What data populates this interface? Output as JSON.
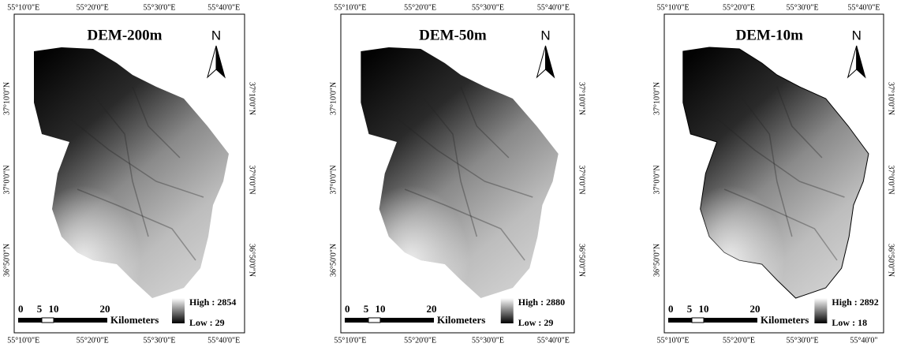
{
  "panels": [
    {
      "title": "DEM-200m",
      "north": "N",
      "top_labels": [
        "55°10'0\"E",
        "55°20'0\"E",
        "55°30'0\"E",
        "55°40'0\"E"
      ],
      "bottom_labels": [
        "55°10'0\"E",
        "55°20'0\"E",
        "55°30'0\"E",
        "55°40'0\"E"
      ],
      "left_labels": [
        "37°10'0\"N",
        "37°0'0\"N",
        "36°50'0\"N"
      ],
      "right_labels": [
        "37°10'0\"N",
        "37°0'0\"N",
        "36°50'0\"N"
      ],
      "scale_labels": [
        "0",
        "5",
        "10",
        "20"
      ],
      "scale_unit": "Kilometers",
      "legend_high": "High : 2854",
      "legend_low": "Low : 29"
    },
    {
      "title": "DEM-50m",
      "north": "N",
      "top_labels": [
        "55°10'0\"E",
        "55°20'0\"E",
        "55°30'0\"E",
        "55°40'0\"E"
      ],
      "bottom_labels": [
        "55°10'0\"E",
        "55°20'0\"E",
        "55°30'0\"E",
        "55°40'0\"E"
      ],
      "left_labels": [
        "37°10'0\"N",
        "37°0'0\"N",
        "36°50'0\"N"
      ],
      "right_labels": [
        "37°10'0\"N",
        "37°0'0\"N",
        "36°50'0\"N"
      ],
      "scale_labels": [
        "0",
        "5",
        "10",
        "20"
      ],
      "scale_unit": "Kilometers",
      "legend_high": "High : 2880",
      "legend_low": "Low : 29"
    },
    {
      "title": "DEM-10m",
      "north": "N",
      "top_labels": [
        "55°10'0\"E",
        "55°20'0\"E",
        "55°30'0\"E",
        "55°40'0\"E"
      ],
      "bottom_labels": [
        "55°10'0\"E",
        "55°20'0\"E",
        "55°30'0\"E",
        "55°40'0\""
      ],
      "left_labels": [
        "37°10'0\"N",
        "37°0'0\"N",
        "36°50'0\"N"
      ],
      "right_labels": [
        "37°10'0\"N",
        "37°0'0\"N",
        "36°50'0\"N"
      ],
      "scale_labels": [
        "0",
        "5",
        "10",
        "20"
      ],
      "scale_unit": "Kilometers",
      "legend_high": "High : 2892",
      "legend_low": "Low : 18"
    }
  ]
}
